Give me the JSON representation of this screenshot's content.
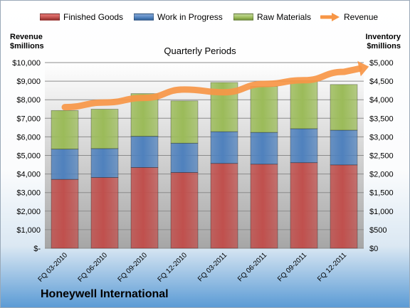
{
  "chart_data": {
    "type": "bar",
    "stacked": true,
    "title": "Quarterly Periods",
    "categories": [
      "FQ 03-2010",
      "FQ 06-2010",
      "FQ 09-2010",
      "FQ 12-2010",
      "FQ 03-2011",
      "FQ 06-2011",
      "FQ 09-2011",
      "FQ 12-2011"
    ],
    "series": [
      {
        "name": "Finished Goods",
        "axis": "right",
        "color": "#c0504d",
        "values": [
          1855,
          1905,
          2175,
          2040,
          2285,
          2265,
          2305,
          2245
        ]
      },
      {
        "name": "Work in Progress",
        "axis": "right",
        "color": "#4f81bd",
        "values": [
          815,
          780,
          840,
          790,
          855,
          855,
          915,
          935
        ]
      },
      {
        "name": "Raw Materials",
        "axis": "right",
        "color": "#9bbb59",
        "values": [
          1040,
          1060,
          1150,
          1140,
          1325,
          1240,
          1300,
          1230
        ]
      }
    ],
    "line_series": {
      "name": "Revenue",
      "axis": "left",
      "color": "#f79646",
      "values": [
        7600,
        7850,
        8100,
        8550,
        8400,
        8850,
        9050,
        9500
      ]
    },
    "left_axis": {
      "label": "Revenue\n$millions",
      "range": [
        0,
        10000
      ],
      "ticks": [
        "$-",
        "$1,000",
        "$2,000",
        "$3,000",
        "$4,000",
        "$5,000",
        "$6,000",
        "$7,000",
        "$8,000",
        "$9,000",
        "$10,000"
      ]
    },
    "right_axis": {
      "label": "Inventory\n$millions",
      "range": [
        0,
        5000
      ],
      "ticks": [
        "$0",
        "$500",
        "$1,000",
        "$1,500",
        "$2,000",
        "$2,500",
        "$3,000",
        "$3,500",
        "$4,000",
        "$4,500",
        "$5,000"
      ]
    },
    "grid": true,
    "legend": "top",
    "footer": "Honeywell International"
  }
}
